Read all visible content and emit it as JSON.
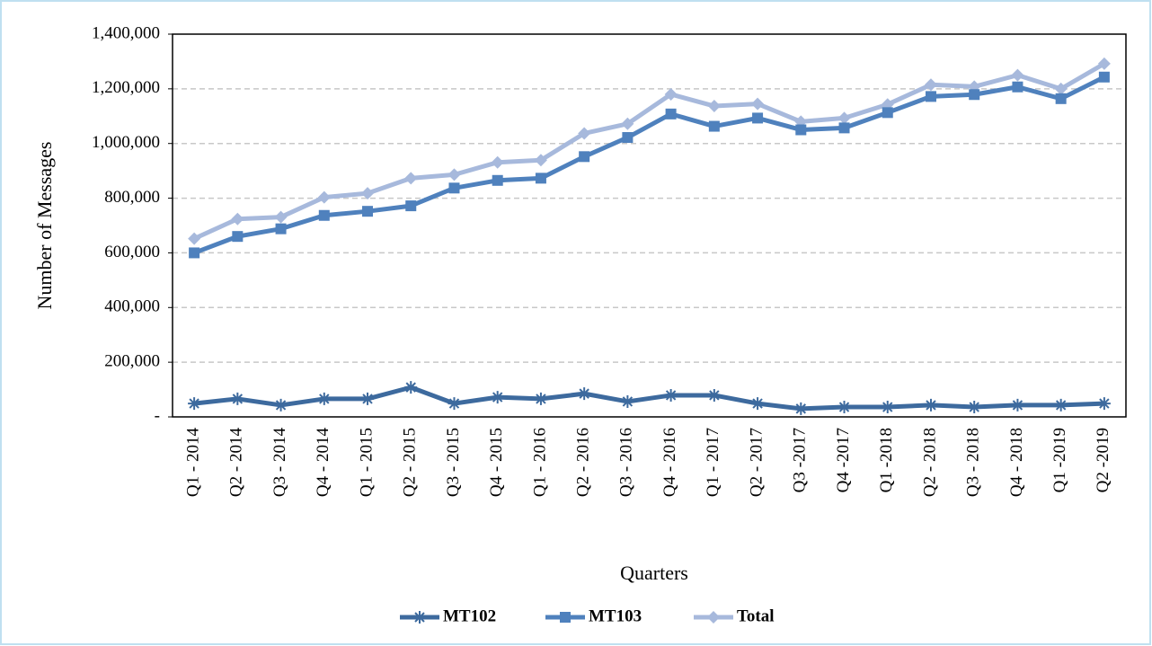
{
  "chart_data": {
    "type": "line",
    "x_label": "Quarters",
    "y_label": "Number of Messages",
    "categories": [
      "Q1 - 2014",
      "Q2 - 2014",
      "Q3 - 2014",
      "Q4 - 2014",
      "Q1 - 2015",
      "Q2 - 2015",
      "Q3 - 2015",
      "Q4 - 2015",
      "Q1 - 2016",
      "Q2 - 2016",
      "Q3 - 2016",
      "Q4 - 2016",
      "Q1 - 2017",
      "Q2 - 2017",
      "Q3 -2017",
      "Q4 -2017",
      "Q1 -2018",
      "Q2 - 2018",
      "Q3 - 2018",
      "Q4 - 2018",
      "Q1 -2019",
      "Q2 -2019"
    ],
    "series": [
      {
        "name": "MT102",
        "color": "#3d6a9e",
        "marker": "asterisk",
        "values": [
          49000,
          66000,
          43000,
          66000,
          66000,
          108000,
          49000,
          72000,
          66000,
          85000,
          56000,
          79000,
          79000,
          49000,
          30000,
          36000,
          36000,
          43000,
          36000,
          43000,
          43000,
          49000
        ]
      },
      {
        "name": "MT103",
        "color": "#4f81bd",
        "marker": "square",
        "values": [
          600000,
          660000,
          688000,
          737000,
          752000,
          772000,
          837000,
          865000,
          873000,
          952000,
          1022000,
          1108000,
          1063000,
          1093000,
          1050000,
          1057000,
          1113000,
          1172000,
          1179000,
          1207000,
          1164000,
          1243000
        ]
      },
      {
        "name": "Total",
        "color": "#a7b9dc",
        "marker": "diamond",
        "values": [
          652000,
          724000,
          731000,
          803000,
          818000,
          873000,
          886000,
          931000,
          939000,
          1037000,
          1072000,
          1180000,
          1137000,
          1145000,
          1080000,
          1093000,
          1143000,
          1215000,
          1208000,
          1250000,
          1200000,
          1292000
        ]
      }
    ],
    "ylim": [
      0,
      1400000
    ],
    "yticks": [
      {
        "value": 0,
        "label": "-"
      },
      {
        "value": 200000,
        "label": "200,000"
      },
      {
        "value": 400000,
        "label": "400,000"
      },
      {
        "value": 600000,
        "label": "600,000"
      },
      {
        "value": 800000,
        "label": "800,000"
      },
      {
        "value": 1000000,
        "label": "1,000,000"
      },
      {
        "value": 1200000,
        "label": "1,200,000"
      },
      {
        "value": 1400000,
        "label": "1,400,000"
      }
    ],
    "grid": true,
    "legend": "bottom"
  }
}
